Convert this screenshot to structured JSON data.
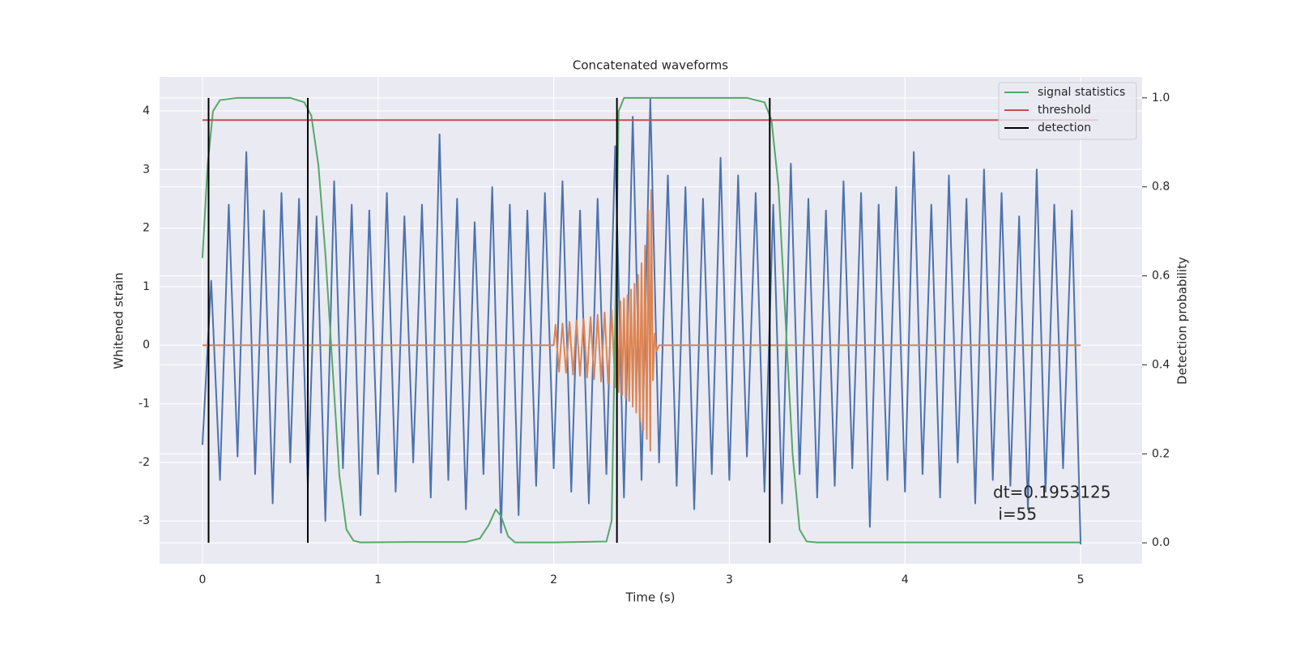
{
  "chart_data": {
    "type": "line",
    "title": "Concatenated waveforms",
    "x_label": "Time (s)",
    "y_label": "Whitened strain",
    "y2_label": "Detection probability",
    "xlim": [
      -0.244,
      5.35
    ],
    "xticks": [
      0,
      1,
      2,
      3,
      4,
      5
    ],
    "ylim": [
      -3.73,
      4.58
    ],
    "yticks": [
      -3,
      -2,
      -1,
      0,
      1,
      2,
      3,
      4
    ],
    "y2lim": [
      -0.047,
      1.047
    ],
    "y2ticks": [
      {
        "value": 0,
        "label": "0.0"
      },
      0.2,
      0.4,
      0.6,
      0.8,
      {
        "value": 1,
        "label": "1.0"
      }
    ],
    "grid": true,
    "legend": "upper right",
    "annotations": [
      "dt=0.1953125",
      " i=55"
    ],
    "series": [
      {
        "name": null,
        "color": "#4c72b0",
        "x": [
          0,
          0.05,
          0.1,
          0.15,
          0.2,
          0.25,
          0.3,
          0.35,
          0.4,
          0.45,
          0.5,
          0.55,
          0.6,
          0.65,
          0.7,
          0.75,
          0.8,
          0.85,
          0.9,
          0.95,
          1,
          1.05,
          1.1,
          1.15,
          1.2,
          1.25,
          1.3,
          1.35,
          1.4,
          1.45,
          1.5,
          1.55,
          1.6,
          1.65,
          1.7,
          1.75,
          1.8,
          1.85,
          1.9,
          1.95,
          2,
          2.05,
          2.1,
          2.15,
          2.2,
          2.25,
          2.3,
          2.35,
          2.4,
          2.45,
          2.5,
          2.55,
          2.6,
          2.65,
          2.7,
          2.75,
          2.8,
          2.85,
          2.9,
          2.95,
          3,
          3.05,
          3.1,
          3.15,
          3.2,
          3.25,
          3.3,
          3.35,
          3.4,
          3.45,
          3.5,
          3.55,
          3.6,
          3.65,
          3.7,
          3.75,
          3.8,
          3.85,
          3.9,
          3.95,
          4,
          4.05,
          4.1,
          4.15,
          4.2,
          4.25,
          4.3,
          4.35,
          4.4,
          4.45,
          4.5,
          4.55,
          4.6,
          4.65,
          4.7,
          4.75,
          4.8,
          4.85,
          4.9,
          4.95,
          5
        ],
        "values": [
          -1.7,
          1.1,
          -2.3,
          2.4,
          -1.9,
          3.3,
          -2.2,
          2.3,
          -2.7,
          2.6,
          -2.0,
          2.5,
          -2.4,
          2.2,
          -3.0,
          2.8,
          -2.1,
          2.4,
          -2.9,
          2.3,
          -2.2,
          2.6,
          -2.5,
          2.2,
          -2.0,
          2.4,
          -2.6,
          3.6,
          -2.3,
          2.5,
          -2.8,
          2.1,
          -2.2,
          2.7,
          -3.2,
          2.4,
          -2.9,
          2.3,
          -2.4,
          2.6,
          -2.1,
          2.8,
          -2.5,
          2.3,
          -2.7,
          2.5,
          -2.2,
          3.4,
          -2.6,
          3.9,
          -2.3,
          4.2,
          -2.0,
          2.9,
          -2.4,
          2.7,
          -2.8,
          2.5,
          -2.2,
          3.2,
          -2.3,
          2.9,
          -1.9,
          2.6,
          -2.5,
          2.4,
          -2.7,
          3.1,
          -2.2,
          2.5,
          -2.6,
          2.3,
          -2.4,
          2.8,
          -2.1,
          2.6,
          -3.1,
          2.4,
          -2.3,
          2.7,
          -2.5,
          3.3,
          -2.2,
          2.4,
          -2.6,
          2.9,
          -2.0,
          2.5,
          -2.7,
          3.0,
          -2.3,
          2.6,
          -2.4,
          2.2,
          -2.8,
          3.0,
          -2.5,
          2.4,
          -2.1,
          2.3,
          -3.4
        ]
      },
      {
        "name": null,
        "color": "#dd8452",
        "x": [
          0,
          2.0,
          2.01,
          2.03,
          2.05,
          2.07,
          2.09,
          2.11,
          2.13,
          2.15,
          2.17,
          2.19,
          2.21,
          2.23,
          2.25,
          2.27,
          2.29,
          2.31,
          2.33,
          2.35,
          2.36,
          2.37,
          2.38,
          2.39,
          2.4,
          2.41,
          2.42,
          2.43,
          2.44,
          2.45,
          2.46,
          2.47,
          2.48,
          2.49,
          2.5,
          2.51,
          2.52,
          2.53,
          2.54,
          2.55,
          2.555,
          2.565,
          2.575,
          2.585,
          2.6,
          5.0
        ],
        "values": [
          0,
          0,
          0.35,
          -0.45,
          0.37,
          -0.47,
          0.4,
          -0.5,
          0.42,
          -0.52,
          0.45,
          -0.55,
          0.48,
          -0.58,
          0.52,
          -0.62,
          0.56,
          -0.66,
          0.6,
          -0.72,
          0.7,
          -0.8,
          0.75,
          -0.85,
          0.8,
          -0.9,
          0.85,
          -0.95,
          0.95,
          -1.05,
          1.05,
          -1.15,
          1.2,
          -1.3,
          1.4,
          -1.45,
          1.7,
          -1.6,
          2.3,
          -1.8,
          2.65,
          -0.6,
          0.2,
          -0.1,
          0,
          0
        ]
      },
      {
        "name": "signal statistics",
        "color": "#55a868",
        "axis": "y2",
        "x": [
          0,
          0.03,
          0.06,
          0.1,
          0.2,
          0.5,
          0.58,
          0.62,
          0.66,
          0.7,
          0.74,
          0.78,
          0.82,
          0.86,
          0.9,
          1.2,
          1.5,
          1.58,
          1.63,
          1.67,
          1.7,
          1.74,
          1.78,
          2.0,
          2.3,
          2.33,
          2.35,
          2.37,
          2.4,
          3.1,
          3.2,
          3.24,
          3.28,
          3.32,
          3.36,
          3.4,
          3.44,
          3.5,
          5.0
        ],
        "values": [
          0.64,
          0.85,
          0.97,
          0.995,
          1.0,
          1.0,
          0.99,
          0.96,
          0.85,
          0.65,
          0.4,
          0.15,
          0.03,
          0.005,
          0.001,
          0.002,
          0.002,
          0.01,
          0.04,
          0.075,
          0.06,
          0.015,
          0.001,
          0.001,
          0.003,
          0.05,
          0.5,
          0.97,
          1.0,
          1.0,
          0.99,
          0.95,
          0.8,
          0.5,
          0.2,
          0.03,
          0.003,
          0.001,
          0.001
        ]
      },
      {
        "name": "threshold",
        "color": "#c44e52",
        "axis": "y2",
        "x": [
          0,
          5.1
        ],
        "values": [
          0.95,
          0.95
        ]
      },
      {
        "name": "detection",
        "color": "#000000",
        "type": "vlines",
        "axis": "y2",
        "x": [
          0.035,
          0.6,
          2.36,
          3.23
        ],
        "span": [
          0,
          1
        ]
      }
    ]
  }
}
